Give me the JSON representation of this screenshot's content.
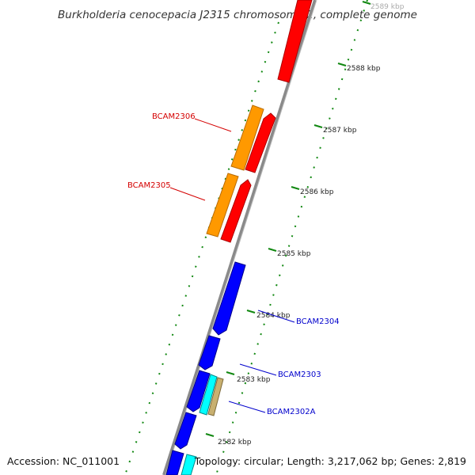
{
  "title": "Burkholderia cenocepacia J2315 chromosome 2, complete genome",
  "footer": {
    "accession": "Accession: NC_011001",
    "summary": "Topology: circular; Length: 3,217,062 bp; Genes: 2,819"
  },
  "ticks": [
    "2589 kbp",
    "2588 kbp",
    "2587 kbp",
    "2586 kbp",
    "2585 kbp",
    "2584 kbp",
    "2583 kbp",
    "2582 kbp"
  ],
  "gene_labels": [
    {
      "name": "BCAM2306",
      "color": "#d40000"
    },
    {
      "name": "BCAM2305",
      "color": "#d40000"
    },
    {
      "name": "BCAM2304",
      "color": "#0000cc"
    },
    {
      "name": "BCAM2303",
      "color": "#0000cc"
    },
    {
      "name": "BCAM2302A",
      "color": "#0000cc"
    }
  ],
  "colors": {
    "red": "#ff0000",
    "orange": "#ff9900",
    "blue": "#0000ff",
    "cyan": "#00ffff",
    "tan": "#c8b070",
    "backbone": "#888888",
    "tick_green": "#007700"
  }
}
